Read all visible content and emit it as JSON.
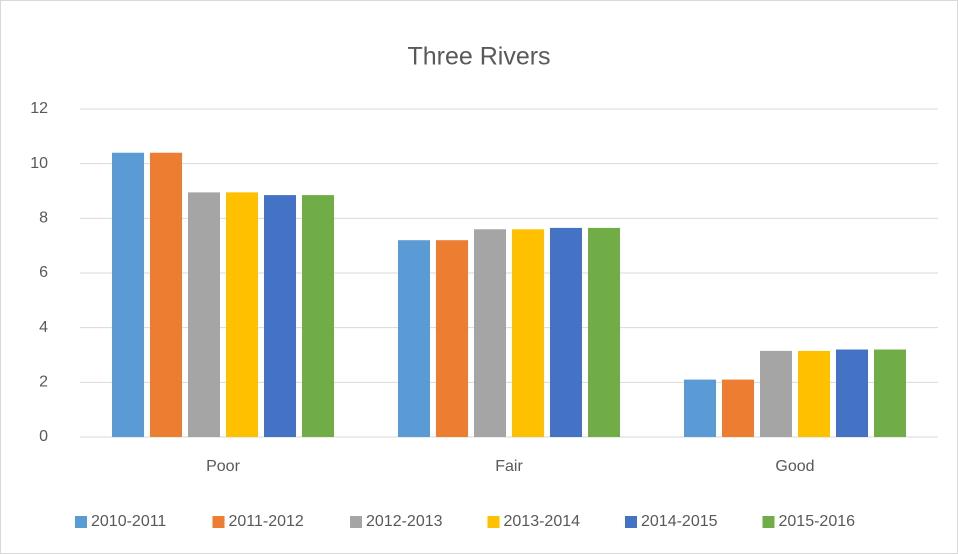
{
  "chart_data": {
    "type": "bar",
    "title": "Three Rivers",
    "categories": [
      "Poor",
      "Fair",
      "Good"
    ],
    "series": [
      {
        "name": "2010-2011",
        "color": "#5b9bd5",
        "values": [
          10.4,
          7.2,
          2.1
        ]
      },
      {
        "name": "2011-2012",
        "color": "#ed7d31",
        "values": [
          10.4,
          7.2,
          2.1
        ]
      },
      {
        "name": "2012-2013",
        "color": "#a5a5a5",
        "values": [
          8.95,
          7.6,
          3.15
        ]
      },
      {
        "name": "2013-2014",
        "color": "#ffc000",
        "values": [
          8.95,
          7.6,
          3.15
        ]
      },
      {
        "name": "2014-2015",
        "color": "#4472c4",
        "values": [
          8.85,
          7.65,
          3.2
        ]
      },
      {
        "name": "2015-2016",
        "color": "#70ad47",
        "values": [
          8.85,
          7.65,
          3.2
        ]
      }
    ],
    "ylim": [
      0,
      12
    ],
    "yticks": [
      0,
      2,
      4,
      6,
      8,
      10,
      12
    ],
    "grid": true,
    "legend": "bottom"
  }
}
